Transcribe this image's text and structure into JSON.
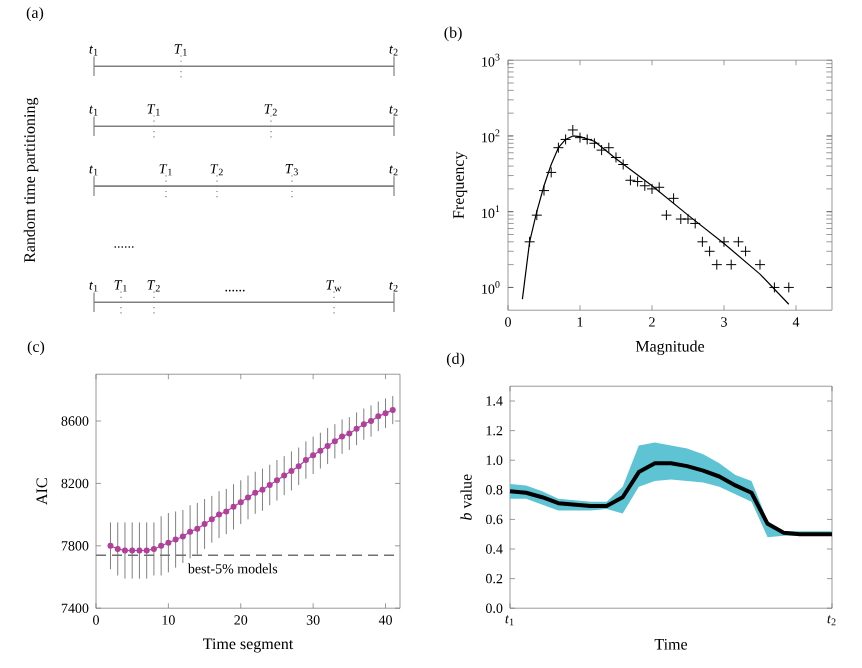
{
  "chart_data": [
    {
      "type": "other",
      "title": "(a)",
      "ylabel": "Random time partitioning",
      "annotations": [
        "*t*$_{1}$",
        "*T*$_{1}$",
        "*t*$_{2}$",
        "*t*$_{1}$",
        "*T*$_{1}$",
        "*T*$_{2}$",
        "*t*$_{2}$",
        "*t*$_{1}$",
        "*T*$_{1}$",
        "*T*$_{2}$",
        "*T*$_{3}$",
        "*t*$_{2}$",
        "......",
        "*t*$_{1}$",
        "*T*$_{1}$",
        "*T*$_{2}$",
        "......",
        "*T*$_{w}$",
        "*t*$_{2}$"
      ]
    },
    {
      "type": "scatter",
      "title": "(b)",
      "xlabel": "Magnitude",
      "ylabel": "Frequency",
      "log": "y",
      "xlim": [
        0,
        4.5
      ],
      "xticks": [
        0,
        1,
        2,
        3,
        4
      ],
      "ylim": [
        0.5,
        1000
      ],
      "yticks": [
        {
          "value": 1,
          "label": "10$^{0}$"
        },
        {
          "value": 10,
          "label": "10$^{1}$"
        },
        {
          "value": 100,
          "label": "10$^{2}$"
        },
        {
          "value": 1000,
          "label": "10$^{3}$"
        }
      ],
      "series": [
        {
          "type": "scatter",
          "color": "#000000",
          "marker": "cross",
          "x": [
            0.3,
            0.4,
            0.5,
            0.6,
            0.7,
            0.8,
            0.9,
            1.0,
            1.1,
            1.2,
            1.3,
            1.4,
            1.5,
            1.6,
            1.7,
            1.8,
            1.9,
            2.0,
            2.1,
            2.2,
            2.3,
            2.4,
            2.5,
            2.6,
            2.7,
            2.8,
            2.9,
            3.0,
            3.1,
            3.2,
            3.3,
            3.5,
            3.7,
            3.9
          ],
          "values": [
            4,
            9,
            19,
            33,
            70,
            90,
            120,
            95,
            90,
            80,
            65,
            70,
            52,
            42,
            26,
            25,
            22,
            20,
            21,
            9,
            15,
            8,
            8,
            7,
            4,
            3,
            2,
            4,
            2,
            4,
            3,
            2,
            1,
            1
          ]
        },
        {
          "type": "line",
          "color": "#000000",
          "marker": "none",
          "x": [
            0.2,
            0.3,
            0.4,
            0.5,
            0.6,
            0.7,
            0.8,
            0.9,
            1.0,
            1.2,
            1.5,
            2.0,
            2.5,
            3.0,
            3.5,
            3.9
          ],
          "values": [
            0.7,
            4,
            10,
            22,
            42,
            70,
            90,
            100,
            98,
            85,
            50,
            22,
            9,
            3.8,
            1.5,
            0.6
          ]
        }
      ]
    },
    {
      "type": "line",
      "title": "(c)",
      "xlabel": "Time segment",
      "ylabel": "AIC",
      "xlim": [
        0,
        42
      ],
      "xticks": [
        0,
        10,
        20,
        30,
        40
      ],
      "ylim": [
        7400,
        8900
      ],
      "yticks": [
        7400,
        7800,
        8200,
        8600
      ],
      "marker": "circle",
      "x": [
        2,
        3,
        4,
        5,
        6,
        7,
        8,
        9,
        10,
        11,
        12,
        13,
        14,
        15,
        16,
        17,
        18,
        19,
        20,
        21,
        22,
        23,
        24,
        25,
        26,
        27,
        28,
        29,
        30,
        31,
        32,
        33,
        34,
        35,
        36,
        37,
        38,
        39,
        40,
        41
      ],
      "series": [
        {
          "color": "#b0409c",
          "values": [
            7800,
            7780,
            7770,
            7770,
            7770,
            7770,
            7780,
            7800,
            7820,
            7840,
            7860,
            7890,
            7910,
            7940,
            7970,
            8000,
            8020,
            8050,
            8080,
            8110,
            8140,
            8160,
            8190,
            8220,
            8250,
            8280,
            8310,
            8350,
            8380,
            8410,
            8440,
            8470,
            8500,
            8520,
            8550,
            8580,
            8600,
            8630,
            8650,
            8670
          ],
          "errors": [
            150,
            170,
            180,
            180,
            180,
            180,
            170,
            190,
            190,
            180,
            170,
            170,
            165,
            160,
            150,
            150,
            145,
            145,
            140,
            140,
            135,
            135,
            130,
            130,
            125,
            125,
            120,
            120,
            120,
            115,
            115,
            110,
            110,
            105,
            105,
            100,
            100,
            95,
            95,
            90
          ]
        }
      ],
      "ref_lines": [
        {
          "axis": "y",
          "value": 7740,
          "label": "best-5% models",
          "line_style": "dashed",
          "color": "#707070"
        }
      ]
    },
    {
      "type": "line",
      "title": "(d)",
      "xlabel": "Time",
      "ylabel": "*b* value",
      "categories": [
        "*t*$_{1}$",
        null,
        null,
        null,
        null,
        null,
        null,
        null,
        null,
        null,
        null,
        null,
        null,
        null,
        null,
        null,
        null,
        null,
        null,
        null,
        "*t*$_{2}$"
      ],
      "ylim": [
        0,
        1.5
      ],
      "yticks": [
        {
          "value": 0,
          "label": "0.0"
        },
        {
          "value": 0.2,
          "label": "0.2"
        },
        {
          "value": 0.4,
          "label": "0.4"
        },
        {
          "value": 0.6,
          "label": "0.6"
        },
        {
          "value": 0.8,
          "label": "0.8"
        },
        {
          "value": 1.0,
          "label": "1.0"
        },
        {
          "value": 1.2,
          "label": "1.2"
        },
        {
          "value": 1.4,
          "label": "1.4"
        }
      ],
      "series": [
        {
          "color": "#000000",
          "values": [
            0.79,
            0.78,
            0.75,
            0.71,
            0.7,
            0.69,
            0.69,
            0.75,
            0.92,
            0.98,
            0.98,
            0.96,
            0.93,
            0.89,
            0.83,
            0.78,
            0.57,
            0.51,
            0.5,
            0.5,
            0.5
          ],
          "lower": [
            0.74,
            0.74,
            0.7,
            0.66,
            0.66,
            0.66,
            0.67,
            0.64,
            0.82,
            0.86,
            0.87,
            0.86,
            0.85,
            0.82,
            0.77,
            0.72,
            0.48,
            0.49,
            0.49,
            0.49,
            0.49
          ],
          "upper": [
            0.84,
            0.83,
            0.79,
            0.74,
            0.73,
            0.72,
            0.72,
            0.82,
            1.1,
            1.12,
            1.1,
            1.08,
            1.04,
            0.98,
            0.9,
            0.86,
            0.59,
            0.52,
            0.52,
            0.52,
            0.52
          ]
        }
      ]
    }
  ]
}
